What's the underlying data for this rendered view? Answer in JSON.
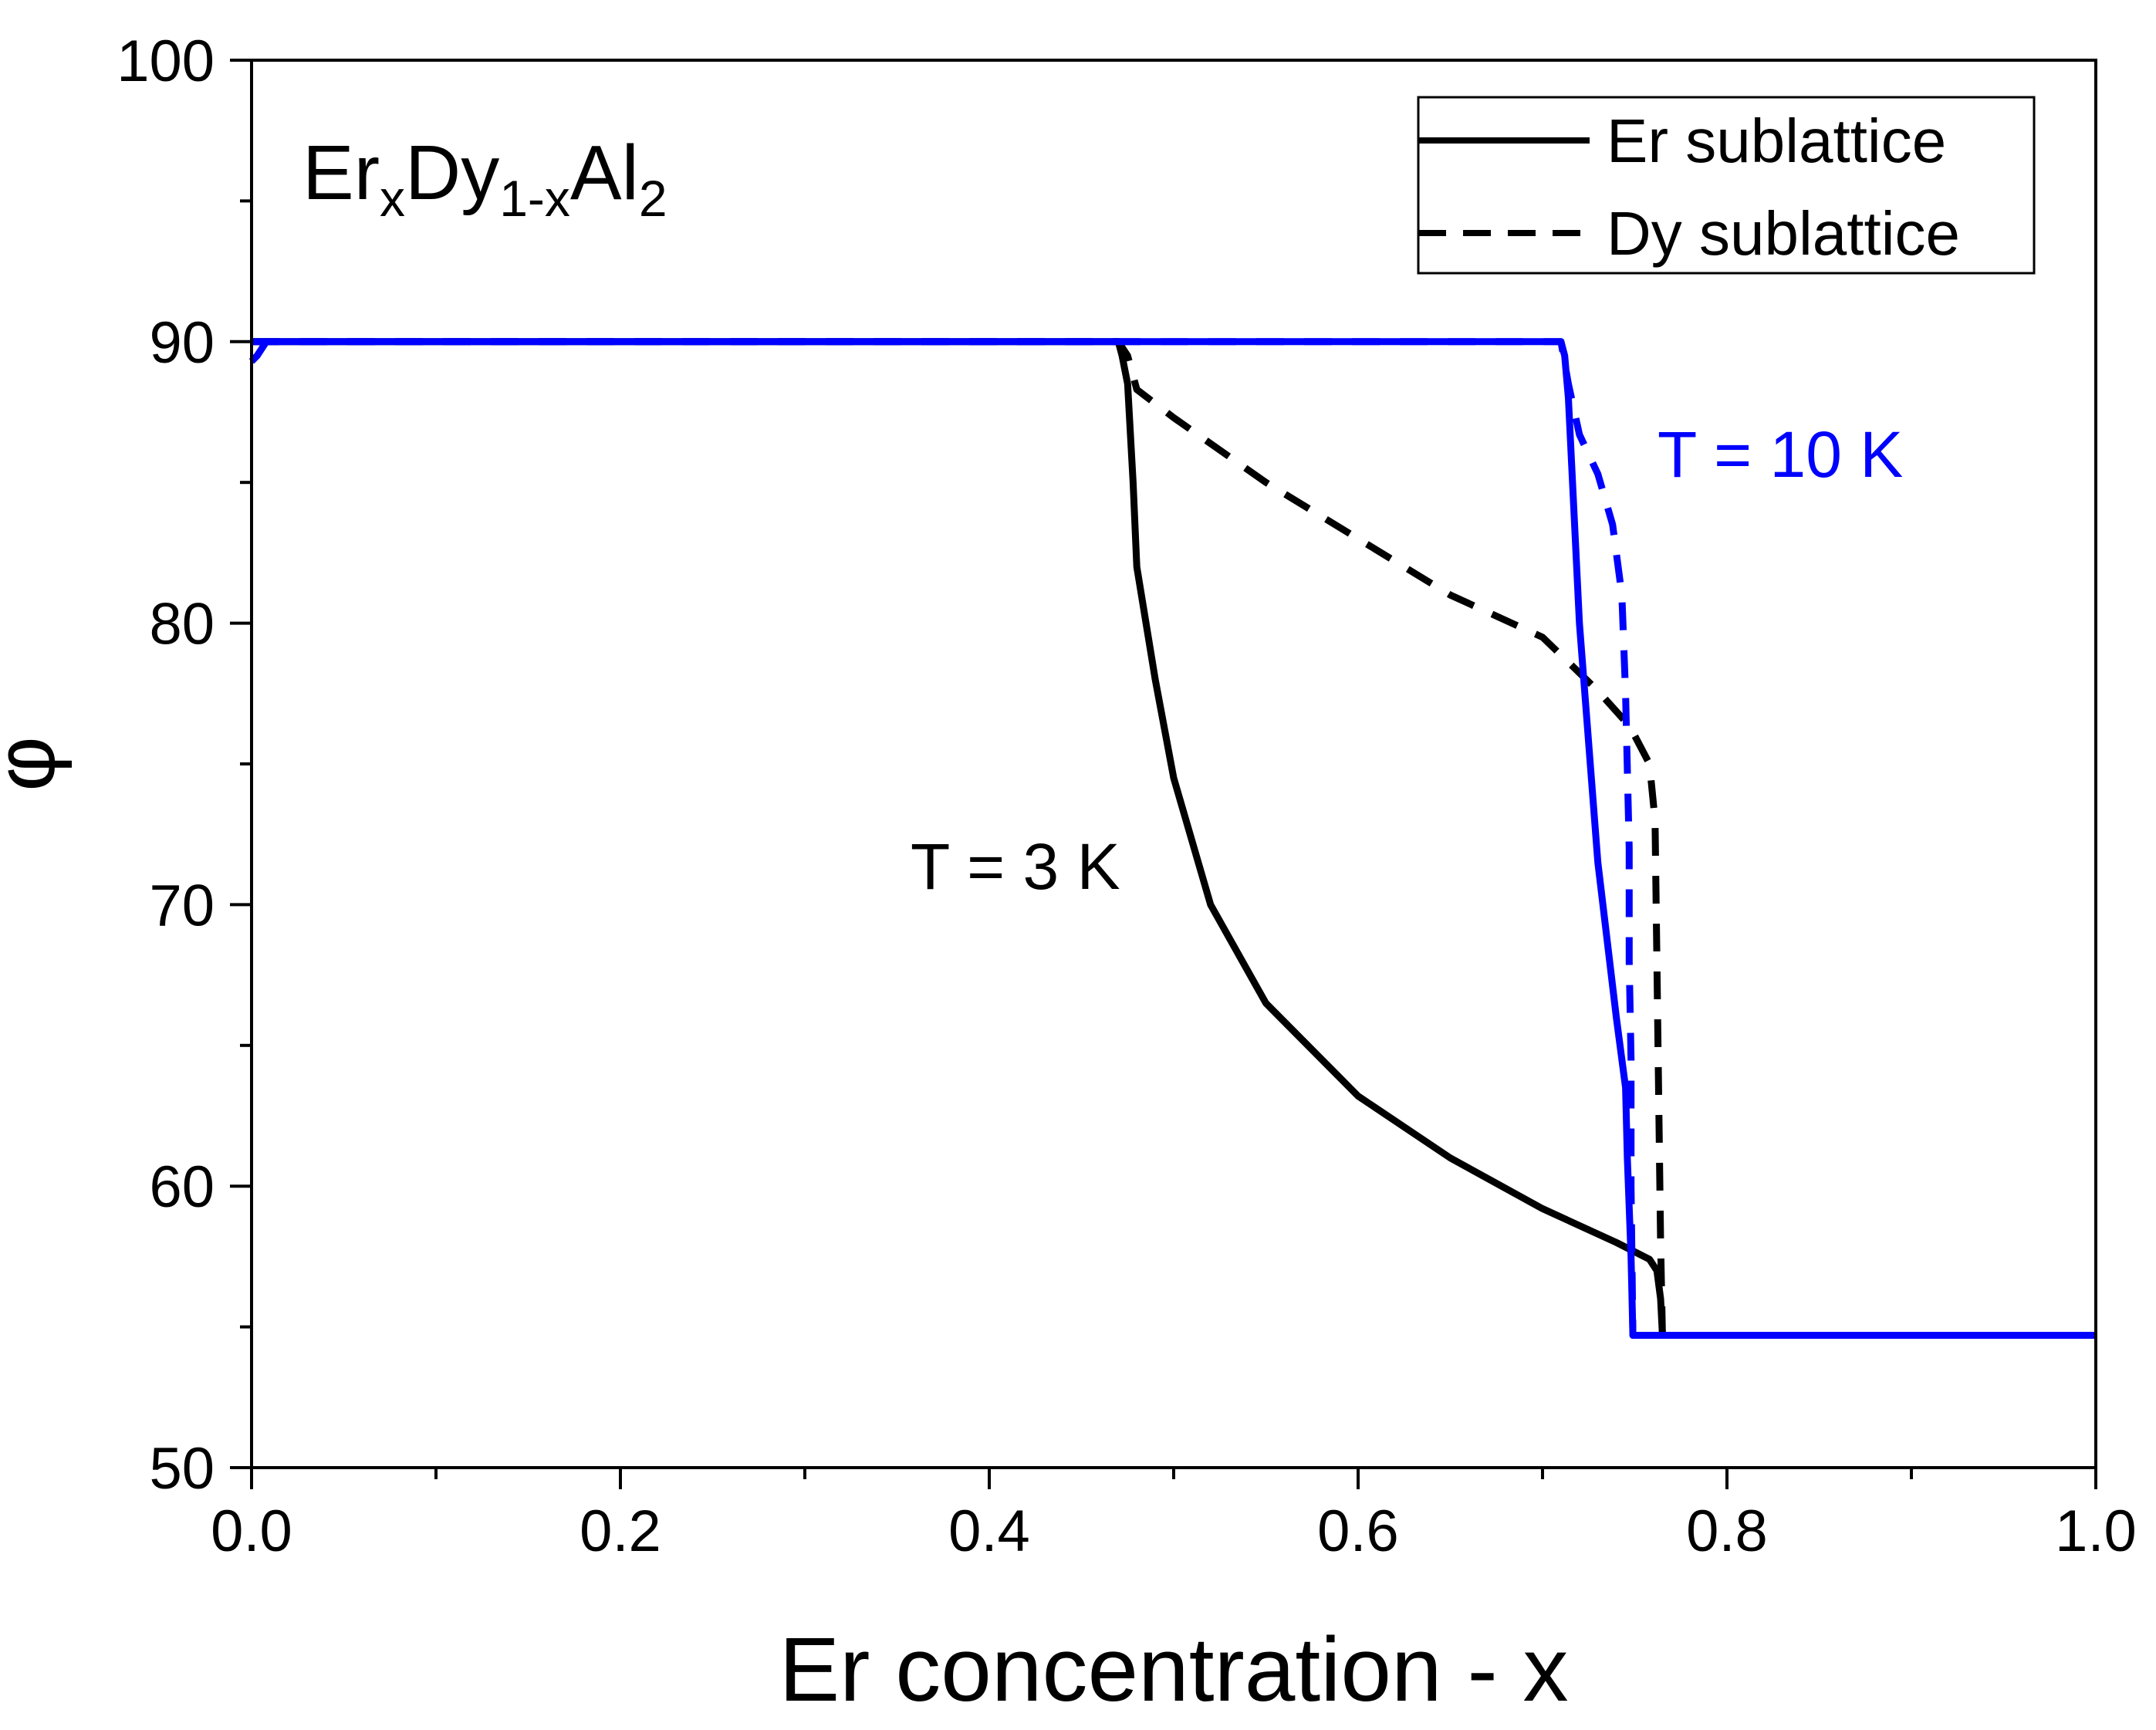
{
  "chart_data": {
    "type": "line",
    "title": "",
    "xlabel": "Er concentration - x",
    "ylabel": "φ",
    "xlim": [
      0.0,
      1.0
    ],
    "ylim": [
      50,
      100
    ],
    "x_ticks": [
      "0.0",
      "0.2",
      "0.4",
      "0.6",
      "0.8",
      "1.0"
    ],
    "y_ticks": [
      "50",
      "60",
      "70",
      "80",
      "90",
      "100"
    ],
    "grid": false,
    "legend_position": "top-right",
    "legend": [
      {
        "label": "Er sublattice",
        "style": "solid"
      },
      {
        "label": "Dy sublattice",
        "style": "dashed"
      }
    ],
    "formula": {
      "base1": "Er",
      "sub1": "x",
      "base2": "Dy",
      "sub2": "1-x",
      "base3": "Al",
      "sub3": "2"
    },
    "annotations": [
      {
        "text": "T = 3 K",
        "color": "#000000"
      },
      {
        "text": "T = 10 K",
        "color": "#0000ff"
      }
    ],
    "series": [
      {
        "temperature": "T = 3 K",
        "sublattice": "Er sublattice",
        "color": "#000000",
        "dash": false,
        "x": [
          0.0,
          0.47,
          0.472,
          0.475,
          0.478,
          0.48,
          0.49,
          0.5,
          0.52,
          0.55,
          0.6,
          0.65,
          0.7,
          0.74,
          0.758,
          0.762,
          0.764,
          0.765,
          1.0
        ],
        "y": [
          90,
          90,
          89.5,
          88.5,
          85,
          82,
          78,
          74.5,
          70,
          66.5,
          63.2,
          61,
          59.2,
          58,
          57.4,
          57,
          56,
          54.7,
          54.7
        ]
      },
      {
        "temperature": "T = 3 K",
        "sublattice": "Dy sublattice",
        "color": "#000000",
        "dash": true,
        "x": [
          0.0,
          0.47,
          0.475,
          0.48,
          0.5,
          0.55,
          0.6,
          0.65,
          0.7,
          0.73,
          0.745,
          0.75,
          0.758,
          0.761,
          0.762,
          0.764,
          0.765,
          1.0
        ],
        "y": [
          90,
          90,
          89.5,
          88.3,
          87.3,
          85,
          83,
          81,
          79.5,
          77.6,
          76.5,
          76,
          75,
          73,
          68,
          58,
          54.7,
          54.7
        ]
      },
      {
        "temperature": "T = 10 K",
        "sublattice": "Er sublattice",
        "color": "#0000ff",
        "dash": false,
        "x": [
          0.0,
          0.003,
          0.008,
          0.015,
          0.7,
          0.71,
          0.712,
          0.714,
          0.72,
          0.73,
          0.74,
          0.745,
          0.746,
          0.748,
          0.749,
          1.0
        ],
        "y": [
          89.3,
          89.5,
          90,
          90,
          90,
          90,
          89.5,
          88,
          80,
          71.5,
          66,
          63.5,
          61,
          57.5,
          54.7,
          54.7
        ]
      },
      {
        "temperature": "T = 10 K",
        "sublattice": "Dy sublattice",
        "color": "#0000ff",
        "dash": true,
        "x": [
          0.0,
          0.71,
          0.714,
          0.72,
          0.73,
          0.738,
          0.743,
          0.745,
          0.747,
          0.747,
          0.748,
          0.748,
          0.749,
          1.0
        ],
        "y": [
          90,
          90,
          88.5,
          86.7,
          85.3,
          83.5,
          81,
          77.5,
          72,
          68,
          64.5,
          60,
          54.7,
          54.7
        ]
      }
    ]
  }
}
